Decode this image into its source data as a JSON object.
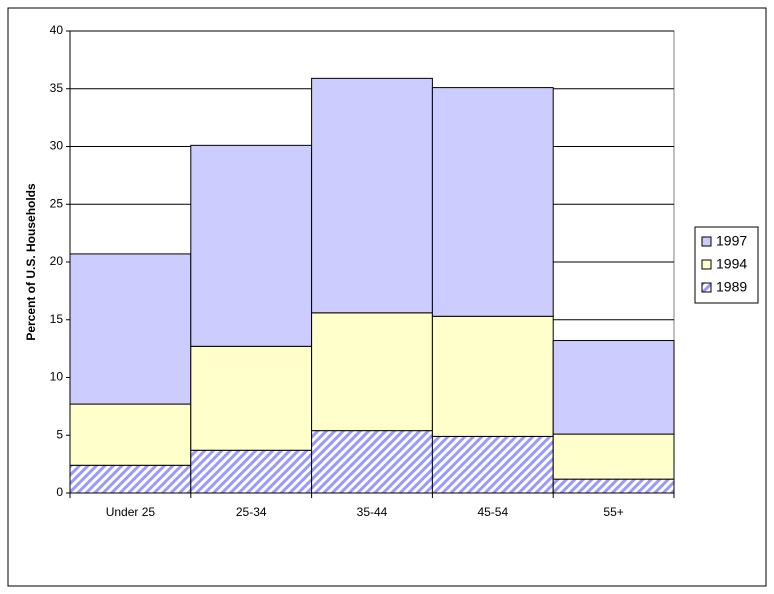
{
  "chart_data": {
    "type": "stacked_bar",
    "y_label": "Percent of U.S. Households",
    "categories": [
      "Under 25",
      "25-34",
      "35-44",
      "45-54",
      "55+"
    ],
    "series": [
      {
        "name": "1989",
        "color": "#9999ff",
        "pattern": "diagonal",
        "values": [
          2.4,
          3.7,
          5.4,
          4.9,
          1.2
        ]
      },
      {
        "name": "1994",
        "color": "#ffffcc",
        "values": [
          5.3,
          9.0,
          10.2,
          10.4,
          3.9
        ]
      },
      {
        "name": "1997",
        "color": "#ccccff",
        "values": [
          13.0,
          17.4,
          20.3,
          19.8,
          8.1
        ]
      }
    ],
    "ylim": [
      0,
      40
    ],
    "yticks": [
      0,
      5,
      10,
      15,
      20,
      25,
      30,
      35,
      40
    ],
    "grid": true,
    "legend": "right"
  }
}
